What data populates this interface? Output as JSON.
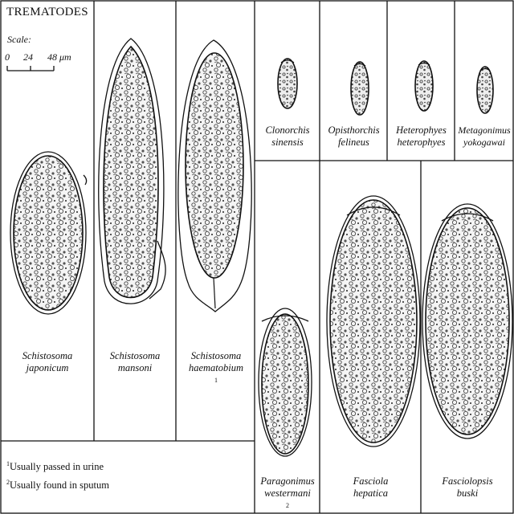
{
  "title": "TREMATODES",
  "scale": {
    "label": "Scale:",
    "ticks": [
      "0",
      "24",
      "48 μm"
    ]
  },
  "species": [
    {
      "genus": "Schistosoma",
      "species": "japonicum",
      "note": ""
    },
    {
      "genus": "Schistosoma",
      "species": "mansoni",
      "note": ""
    },
    {
      "genus": "Schistosoma",
      "species": "haematobium",
      "note": "1"
    },
    {
      "genus": "Clonorchis",
      "species": "sinensis",
      "note": ""
    },
    {
      "genus": "Opisthorchis",
      "species": "felineus",
      "note": ""
    },
    {
      "genus": "Heterophyes",
      "species": "heterophyes",
      "note": ""
    },
    {
      "genus": "Metagonimus",
      "species": "yokogawai",
      "note": ""
    },
    {
      "genus": "Paragonimus",
      "species": "westermani",
      "note": "2"
    },
    {
      "genus": "Fasciola",
      "species": "hepatica",
      "note": ""
    },
    {
      "genus": "Fasciolopsis",
      "species": "buski",
      "note": ""
    }
  ],
  "footnotes": [
    {
      "marker": "1",
      "text": "Usually passed in urine"
    },
    {
      "marker": "2",
      "text": "Usually found in sputum"
    }
  ]
}
